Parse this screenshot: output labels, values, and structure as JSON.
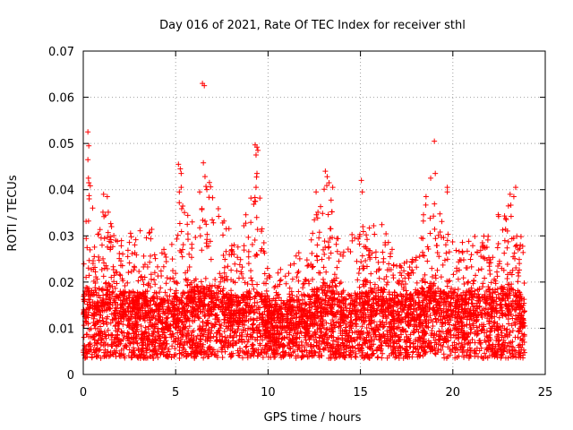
{
  "chart_data": {
    "type": "scatter",
    "title": "Day 016 of 2021, Rate Of TEC Index for receiver sthl",
    "xlabel": "GPS time / hours",
    "ylabel": "ROTI / TECUs",
    "xlim": [
      0,
      25
    ],
    "ylim": [
      0,
      0.07
    ],
    "xticks": [
      0,
      5,
      10,
      15,
      20,
      25
    ],
    "xtick_labels": [
      "0",
      "5",
      "10",
      "15",
      "20",
      "25"
    ],
    "yticks": [
      0,
      0.01,
      0.02,
      0.03,
      0.04,
      0.05,
      0.06,
      0.07
    ],
    "ytick_labels": [
      "0",
      "0.01",
      "0.02",
      "0.03",
      "0.04",
      "0.05",
      "0.06",
      "0.07"
    ],
    "grid": true,
    "marker": "+",
    "marker_color": "#ff0000",
    "series_x_range": [
      0,
      23.9
    ],
    "envelope": [
      {
        "t": 0.0,
        "base": 0.012,
        "upper": 0.024
      },
      {
        "t": 0.3,
        "base": 0.013,
        "upper": 0.05
      },
      {
        "t": 0.6,
        "base": 0.013,
        "upper": 0.03
      },
      {
        "t": 1.2,
        "base": 0.014,
        "upper": 0.037
      },
      {
        "t": 2.0,
        "base": 0.012,
        "upper": 0.03
      },
      {
        "t": 3.0,
        "base": 0.012,
        "upper": 0.033
      },
      {
        "t": 4.0,
        "base": 0.012,
        "upper": 0.032
      },
      {
        "t": 4.6,
        "base": 0.01,
        "upper": 0.024
      },
      {
        "t": 5.3,
        "base": 0.012,
        "upper": 0.04
      },
      {
        "t": 6.0,
        "base": 0.013,
        "upper": 0.032
      },
      {
        "t": 6.6,
        "base": 0.014,
        "upper": 0.045
      },
      {
        "t": 7.5,
        "base": 0.012,
        "upper": 0.034
      },
      {
        "t": 8.5,
        "base": 0.011,
        "upper": 0.028
      },
      {
        "t": 9.4,
        "base": 0.013,
        "upper": 0.048
      },
      {
        "t": 10.0,
        "base": 0.01,
        "upper": 0.022
      },
      {
        "t": 11.0,
        "base": 0.01,
        "upper": 0.024
      },
      {
        "t": 12.0,
        "base": 0.011,
        "upper": 0.028
      },
      {
        "t": 13.2,
        "base": 0.014,
        "upper": 0.042
      },
      {
        "t": 14.0,
        "base": 0.011,
        "upper": 0.028
      },
      {
        "t": 15.0,
        "base": 0.012,
        "upper": 0.033
      },
      {
        "t": 16.0,
        "base": 0.013,
        "upper": 0.035
      },
      {
        "t": 17.0,
        "base": 0.011,
        "upper": 0.024
      },
      {
        "t": 18.0,
        "base": 0.012,
        "upper": 0.028
      },
      {
        "t": 18.8,
        "base": 0.014,
        "upper": 0.042
      },
      {
        "t": 19.5,
        "base": 0.012,
        "upper": 0.032
      },
      {
        "t": 20.5,
        "base": 0.012,
        "upper": 0.03
      },
      {
        "t": 21.5,
        "base": 0.013,
        "upper": 0.03
      },
      {
        "t": 22.5,
        "base": 0.013,
        "upper": 0.035
      },
      {
        "t": 23.3,
        "base": 0.013,
        "upper": 0.039
      },
      {
        "t": 23.9,
        "base": 0.011,
        "upper": 0.025
      }
    ],
    "outliers": [
      {
        "x": 0.25,
        "y": 0.0525
      },
      {
        "x": 0.3,
        "y": 0.0495
      },
      {
        "x": 0.25,
        "y": 0.0465
      },
      {
        "x": 0.28,
        "y": 0.0425
      },
      {
        "x": 0.3,
        "y": 0.0415
      },
      {
        "x": 0.32,
        "y": 0.038
      },
      {
        "x": 1.1,
        "y": 0.039
      },
      {
        "x": 1.3,
        "y": 0.0385
      },
      {
        "x": 5.15,
        "y": 0.0455
      },
      {
        "x": 5.25,
        "y": 0.0445
      },
      {
        "x": 5.3,
        "y": 0.0435
      },
      {
        "x": 5.2,
        "y": 0.0395
      },
      {
        "x": 5.3,
        "y": 0.0405
      },
      {
        "x": 6.45,
        "y": 0.063
      },
      {
        "x": 6.55,
        "y": 0.0625
      },
      {
        "x": 6.5,
        "y": 0.0458
      },
      {
        "x": 6.3,
        "y": 0.0395
      },
      {
        "x": 9.3,
        "y": 0.0497
      },
      {
        "x": 9.4,
        "y": 0.0492
      },
      {
        "x": 9.45,
        "y": 0.0485
      },
      {
        "x": 9.35,
        "y": 0.0475
      },
      {
        "x": 9.4,
        "y": 0.0435
      },
      {
        "x": 9.35,
        "y": 0.0405
      },
      {
        "x": 12.6,
        "y": 0.0395
      },
      {
        "x": 13.1,
        "y": 0.044
      },
      {
        "x": 13.2,
        "y": 0.0428
      },
      {
        "x": 13.3,
        "y": 0.0415
      },
      {
        "x": 13.5,
        "y": 0.0405
      },
      {
        "x": 15.05,
        "y": 0.042
      },
      {
        "x": 15.1,
        "y": 0.0395
      },
      {
        "x": 18.55,
        "y": 0.0385
      },
      {
        "x": 18.8,
        "y": 0.0425
      },
      {
        "x": 19.0,
        "y": 0.0505
      },
      {
        "x": 19.05,
        "y": 0.0435
      },
      {
        "x": 19.7,
        "y": 0.0405
      },
      {
        "x": 19.7,
        "y": 0.0395
      },
      {
        "x": 23.1,
        "y": 0.039
      },
      {
        "x": 23.4,
        "y": 0.0405
      },
      {
        "x": 23.3,
        "y": 0.0385
      }
    ]
  }
}
